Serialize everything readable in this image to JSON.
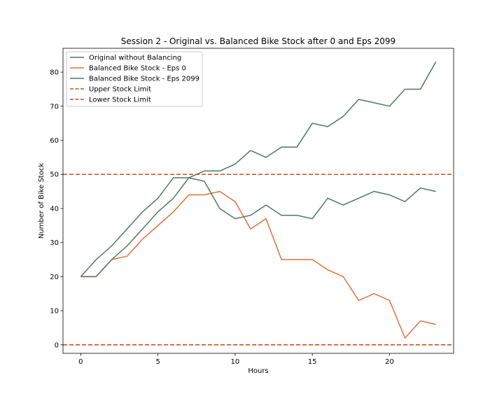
{
  "chart_data": {
    "type": "line",
    "title": "Session 2 - Original vs. Balanced Bike Stock after 0 and Eps 2099",
    "xlabel": "Hours",
    "ylabel": "Number of Bike Stock",
    "xlim": [
      -1.15,
      24.15
    ],
    "ylim": [
      -2.5,
      87
    ],
    "xticks": [
      0,
      5,
      10,
      15,
      20
    ],
    "yticks": [
      0,
      10,
      20,
      30,
      40,
      50,
      60,
      70,
      80
    ],
    "grid": false,
    "legend_position": "top-left",
    "x": [
      0,
      1,
      2,
      3,
      4,
      5,
      6,
      7,
      8,
      9,
      10,
      11,
      12,
      13,
      14,
      15,
      16,
      17,
      18,
      19,
      20,
      21,
      22,
      23
    ],
    "series": [
      {
        "name": "Original without Balancing",
        "color": "#4c7a5e",
        "style": "solid",
        "values": [
          20,
          25,
          29,
          34,
          39,
          43,
          49,
          49,
          51,
          51,
          53,
          57,
          55,
          58,
          58,
          65,
          64,
          67,
          72,
          71,
          70,
          75,
          75,
          83
        ]
      },
      {
        "name": "Balanced Bike Stock - Eps 0",
        "color": "#e0703a",
        "style": "solid",
        "values": [
          20,
          20,
          25,
          26,
          31,
          35,
          39,
          44,
          44,
          45,
          42,
          34,
          37,
          25,
          25,
          25,
          22,
          20,
          13,
          15,
          13,
          2,
          7,
          6
        ]
      },
      {
        "name": "Balanced Bike Stock - Eps 2099",
        "color": "#4c7a5e",
        "style": "solid",
        "values": [
          20,
          20,
          25,
          29,
          34,
          39,
          43,
          49,
          48,
          40,
          37,
          38,
          41,
          38,
          38,
          37,
          43,
          41,
          43,
          45,
          44,
          42,
          46,
          45
        ]
      },
      {
        "name": "Upper Stock Limit",
        "color": "#d94b1f",
        "style": "dashed",
        "hline": 50
      },
      {
        "name": "Lower Stock Limit",
        "color": "#d94b1f",
        "style": "dashed",
        "hline": 0
      }
    ]
  }
}
